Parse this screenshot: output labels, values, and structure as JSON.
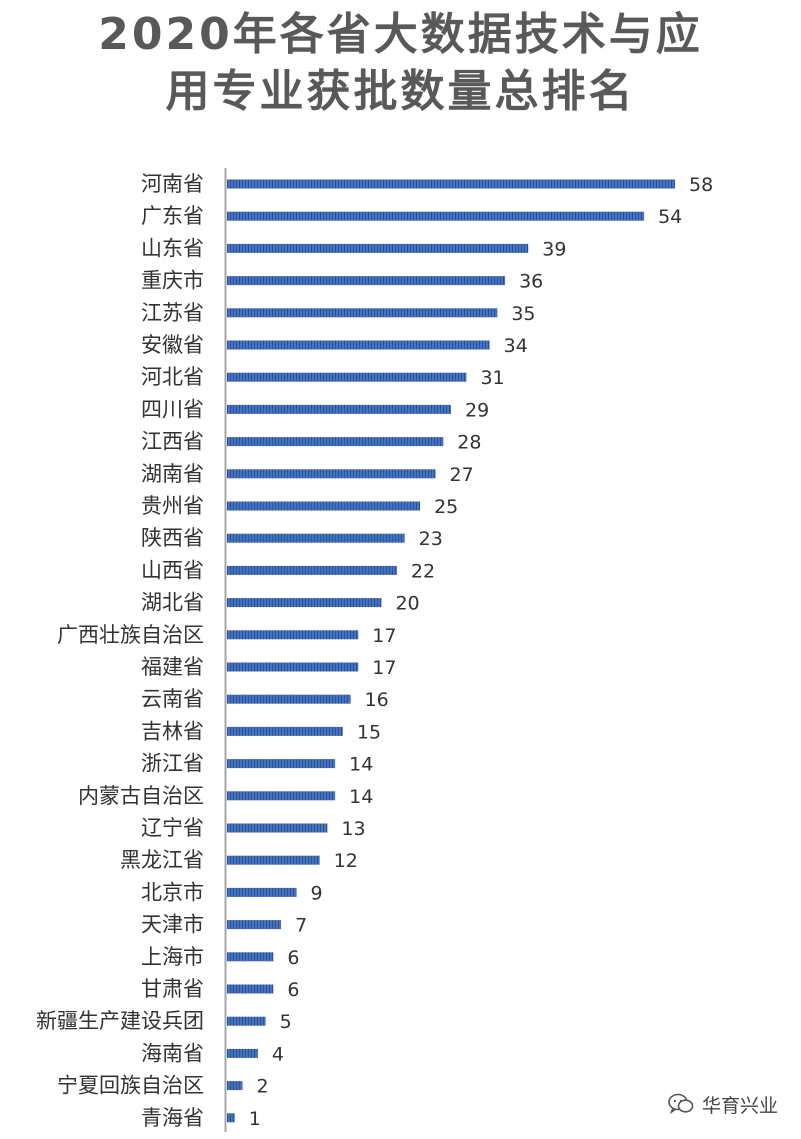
{
  "title": {
    "line1": "2020年各省大数据技术与应",
    "line2": "用专业获批数量总排名"
  },
  "watermark": {
    "icon": "wechat-icon",
    "text": "华育兴业"
  },
  "colors": {
    "bar": "#4472C4",
    "bar_dark": "#2F528F",
    "axis": "#A6A6A6",
    "text": "#333333",
    "title": "#595959"
  },
  "chart_data": {
    "type": "bar",
    "orientation": "horizontal",
    "title": "2020年各省大数据技术与应用专业获批数量总排名",
    "categories": [
      "河南省",
      "广东省",
      "山东省",
      "重庆市",
      "江苏省",
      "安徽省",
      "河北省",
      "四川省",
      "江西省",
      "湖南省",
      "贵州省",
      "陕西省",
      "山西省",
      "湖北省",
      "广西壮族自治区",
      "福建省",
      "云南省",
      "吉林省",
      "浙江省",
      "内蒙古自治区",
      "辽宁省",
      "黑龙江省",
      "北京市",
      "天津市",
      "上海市",
      "甘肃省",
      "新疆生产建设兵团",
      "海南省",
      "宁夏回族自治区",
      "青海省"
    ],
    "values": [
      58,
      54,
      39,
      36,
      35,
      34,
      31,
      29,
      28,
      27,
      25,
      23,
      22,
      20,
      17,
      17,
      16,
      15,
      14,
      14,
      13,
      12,
      9,
      7,
      6,
      6,
      5,
      4,
      2,
      1
    ],
    "xlabel": "",
    "ylabel": "",
    "xlim": [
      0,
      58
    ],
    "grid": false,
    "legend": "none",
    "data_labels": true
  }
}
